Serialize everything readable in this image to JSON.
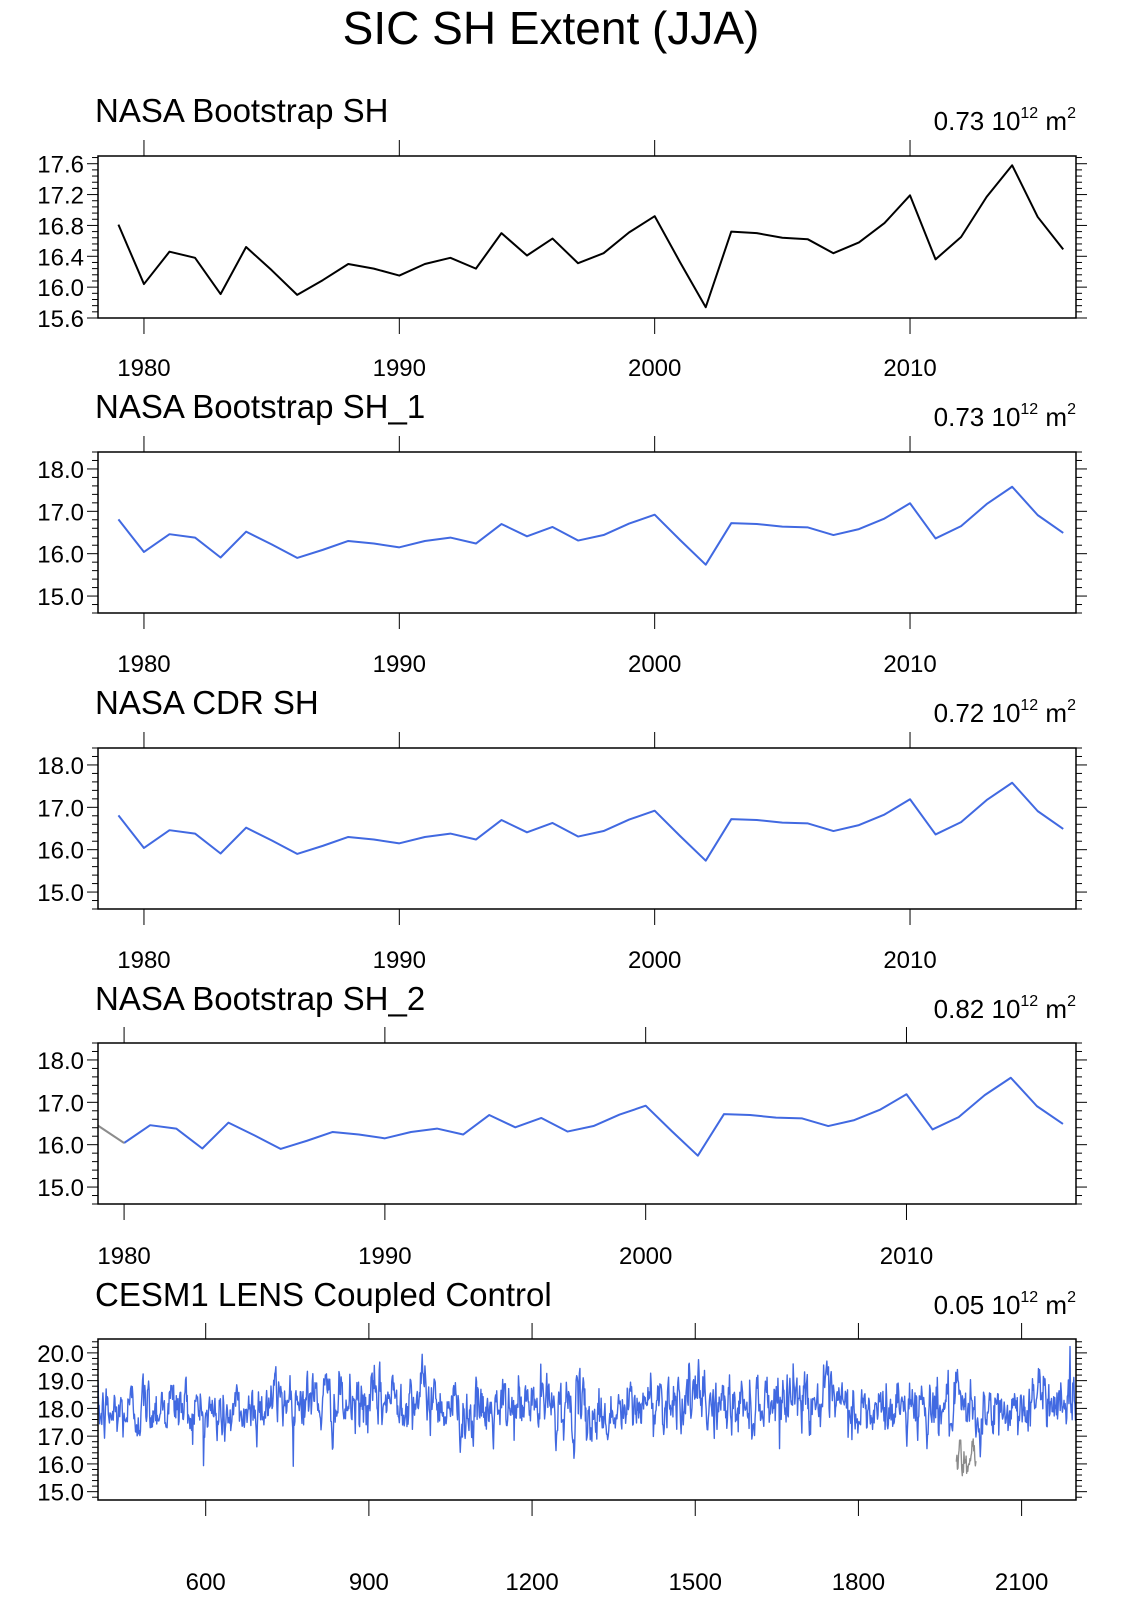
{
  "figure_title": "SIC SH Extent (JJA)",
  "colors": {
    "obs_black": "#000000",
    "series_blue": "#4169e1",
    "overlay_gray": "#8c8c8c"
  },
  "chart_data": [
    {
      "type": "line",
      "title": "NASA Bootstrap SH",
      "stat": {
        "value": "0.73 10",
        "exp": "12",
        "unit": " m",
        "unit_exp": "2"
      },
      "x": [
        1979,
        1980,
        1981,
        1982,
        1983,
        1984,
        1985,
        1986,
        1987,
        1988,
        1989,
        1990,
        1991,
        1992,
        1993,
        1994,
        1995,
        1996,
        1997,
        1998,
        1999,
        2000,
        2001,
        2002,
        2003,
        2004,
        2005,
        2006,
        2007,
        2008,
        2009,
        2010,
        2011,
        2012,
        2013,
        2014,
        2015,
        2016
      ],
      "series": [
        {
          "name": "NASA Bootstrap SH",
          "color": "#000000",
          "values": [
            16.81,
            16.04,
            16.46,
            16.38,
            15.91,
            16.52,
            16.22,
            15.9,
            16.09,
            16.3,
            16.24,
            16.15,
            16.3,
            16.38,
            16.24,
            16.7,
            16.41,
            16.63,
            16.31,
            16.44,
            16.71,
            16.92,
            16.32,
            15.74,
            16.72,
            16.7,
            16.64,
            16.62,
            16.44,
            16.58,
            16.83,
            17.19,
            16.36,
            16.65,
            17.17,
            17.58,
            16.91,
            16.49
          ]
        }
      ],
      "xlim": [
        1978.2,
        2016.5
      ],
      "ylim": [
        15.6,
        17.7
      ],
      "yticks": [
        15.6,
        16.0,
        16.4,
        16.8,
        17.2,
        17.6
      ],
      "ytick_labels": [
        "15.6",
        "16.0",
        "16.4",
        "16.8",
        "17.2",
        "17.6"
      ],
      "xticks": [
        1980,
        1990,
        2000,
        2010
      ],
      "xtick_labels": [
        "1980",
        "1990",
        "2000",
        "2010"
      ],
      "xlabel": "",
      "ylabel": ""
    },
    {
      "type": "line",
      "title": "NASA Bootstrap SH_1",
      "stat": {
        "value": "0.73 10",
        "exp": "12",
        "unit": " m",
        "unit_exp": "2"
      },
      "x": [
        1979,
        1980,
        1981,
        1982,
        1983,
        1984,
        1985,
        1986,
        1987,
        1988,
        1989,
        1990,
        1991,
        1992,
        1993,
        1994,
        1995,
        1996,
        1997,
        1998,
        1999,
        2000,
        2001,
        2002,
        2003,
        2004,
        2005,
        2006,
        2007,
        2008,
        2009,
        2010,
        2011,
        2012,
        2013,
        2014,
        2015,
        2016
      ],
      "series": [
        {
          "name": "NASA Bootstrap SH_1",
          "color": "#4169e1",
          "values": [
            16.81,
            16.04,
            16.46,
            16.38,
            15.91,
            16.52,
            16.22,
            15.9,
            16.09,
            16.3,
            16.24,
            16.15,
            16.3,
            16.38,
            16.24,
            16.7,
            16.41,
            16.63,
            16.31,
            16.44,
            16.71,
            16.92,
            16.32,
            15.74,
            16.72,
            16.7,
            16.64,
            16.62,
            16.44,
            16.58,
            16.83,
            17.19,
            16.36,
            16.65,
            17.17,
            17.58,
            16.91,
            16.49
          ]
        }
      ],
      "xlim": [
        1978.2,
        2016.5
      ],
      "ylim": [
        14.6,
        18.4
      ],
      "yticks": [
        15.0,
        16.0,
        17.0,
        18.0
      ],
      "ytick_labels": [
        "15.0",
        "16.0",
        "17.0",
        "18.0"
      ],
      "xticks": [
        1980,
        1990,
        2000,
        2010
      ],
      "xtick_labels": [
        "1980",
        "1990",
        "2000",
        "2010"
      ],
      "xlabel": "",
      "ylabel": ""
    },
    {
      "type": "line",
      "title": "NASA CDR SH",
      "stat": {
        "value": "0.72 10",
        "exp": "12",
        "unit": " m",
        "unit_exp": "2"
      },
      "x": [
        1979,
        1980,
        1981,
        1982,
        1983,
        1984,
        1985,
        1986,
        1987,
        1988,
        1989,
        1990,
        1991,
        1992,
        1993,
        1994,
        1995,
        1996,
        1997,
        1998,
        1999,
        2000,
        2001,
        2002,
        2003,
        2004,
        2005,
        2006,
        2007,
        2008,
        2009,
        2010,
        2011,
        2012,
        2013,
        2014,
        2015,
        2016
      ],
      "series": [
        {
          "name": "NASA CDR SH",
          "color": "#4169e1",
          "values": [
            16.81,
            16.04,
            16.46,
            16.38,
            15.91,
            16.52,
            16.22,
            15.9,
            16.09,
            16.3,
            16.24,
            16.15,
            16.3,
            16.38,
            16.24,
            16.7,
            16.41,
            16.63,
            16.31,
            16.44,
            16.71,
            16.92,
            16.32,
            15.74,
            16.72,
            16.7,
            16.64,
            16.62,
            16.44,
            16.58,
            16.83,
            17.19,
            16.36,
            16.65,
            17.17,
            17.58,
            16.91,
            16.49
          ]
        }
      ],
      "xlim": [
        1978.2,
        2016.5
      ],
      "ylim": [
        14.6,
        18.4
      ],
      "yticks": [
        15.0,
        16.0,
        17.0,
        18.0
      ],
      "ytick_labels": [
        "15.0",
        "16.0",
        "17.0",
        "18.0"
      ],
      "xticks": [
        1980,
        1990,
        2000,
        2010
      ],
      "xtick_labels": [
        "1980",
        "1990",
        "2000",
        "2010"
      ],
      "xlabel": "",
      "ylabel": ""
    },
    {
      "type": "line",
      "title": "NASA Bootstrap SH_2",
      "stat": {
        "value": "0.82 10",
        "exp": "12",
        "unit": " m",
        "unit_exp": "2"
      },
      "x": [
        1980,
        1981,
        1982,
        1983,
        1984,
        1985,
        1986,
        1987,
        1988,
        1989,
        1990,
        1991,
        1992,
        1993,
        1994,
        1995,
        1996,
        1997,
        1998,
        1999,
        2000,
        2001,
        2002,
        2003,
        2004,
        2005,
        2006,
        2007,
        2008,
        2009,
        2010,
        2011,
        2012,
        2013,
        2014,
        2015,
        2016
      ],
      "series": [
        {
          "name": "NASA Bootstrap SH_2",
          "color": "#4169e1",
          "values": [
            16.04,
            16.46,
            16.38,
            15.91,
            16.52,
            16.22,
            15.9,
            16.09,
            16.3,
            16.24,
            16.15,
            16.3,
            16.38,
            16.24,
            16.7,
            16.41,
            16.63,
            16.31,
            16.44,
            16.71,
            16.92,
            16.32,
            15.74,
            16.72,
            16.7,
            16.64,
            16.62,
            16.44,
            16.58,
            16.83,
            17.19,
            16.36,
            16.65,
            17.17,
            17.58,
            16.91,
            16.49
          ]
        },
        {
          "name": "overlay",
          "color": "#8c8c8c",
          "x": [
            1979.0,
            1980.0
          ],
          "values": [
            16.45,
            16.04
          ]
        }
      ],
      "xlim": [
        1979.0,
        2016.5
      ],
      "ylim": [
        14.6,
        18.4
      ],
      "yticks": [
        15.0,
        16.0,
        17.0,
        18.0
      ],
      "ytick_labels": [
        "15.0",
        "16.0",
        "17.0",
        "18.0"
      ],
      "xticks": [
        1980,
        1990,
        2000,
        2010
      ],
      "xtick_labels": [
        "1980",
        "1990",
        "2000",
        "2010"
      ],
      "xlabel": "",
      "ylabel": ""
    },
    {
      "type": "line",
      "title": "CESM1 LENS Coupled Control",
      "stat": {
        "value": "0.05 10",
        "exp": "12",
        "unit": " m",
        "unit_exp": "2"
      },
      "x_range": [
        402,
        2200
      ],
      "series": [
        {
          "name": "CESM1 LENS Coupled Control",
          "color": "#4169e1",
          "x_start": 402,
          "x_end": 2200,
          "mean": 18.1,
          "std": 0.45
        },
        {
          "name": "overlay",
          "color": "#8c8c8c",
          "x_start": 1980,
          "x_end": 2016,
          "mean": 16.35,
          "std": 0.3
        }
      ],
      "xlim": [
        402,
        2200
      ],
      "ylim": [
        14.7,
        20.5
      ],
      "yticks": [
        15.0,
        16.0,
        17.0,
        18.0,
        19.0,
        20.0
      ],
      "ytick_labels": [
        "15.0",
        "16.0",
        "17.0",
        "18.0",
        "19.0",
        "20.0"
      ],
      "xticks": [
        600,
        900,
        1200,
        1500,
        1800,
        2100
      ],
      "xtick_labels": [
        "600",
        "900",
        "1200",
        "1500",
        "1800",
        "2100"
      ],
      "xlabel": "",
      "ylabel": ""
    }
  ]
}
